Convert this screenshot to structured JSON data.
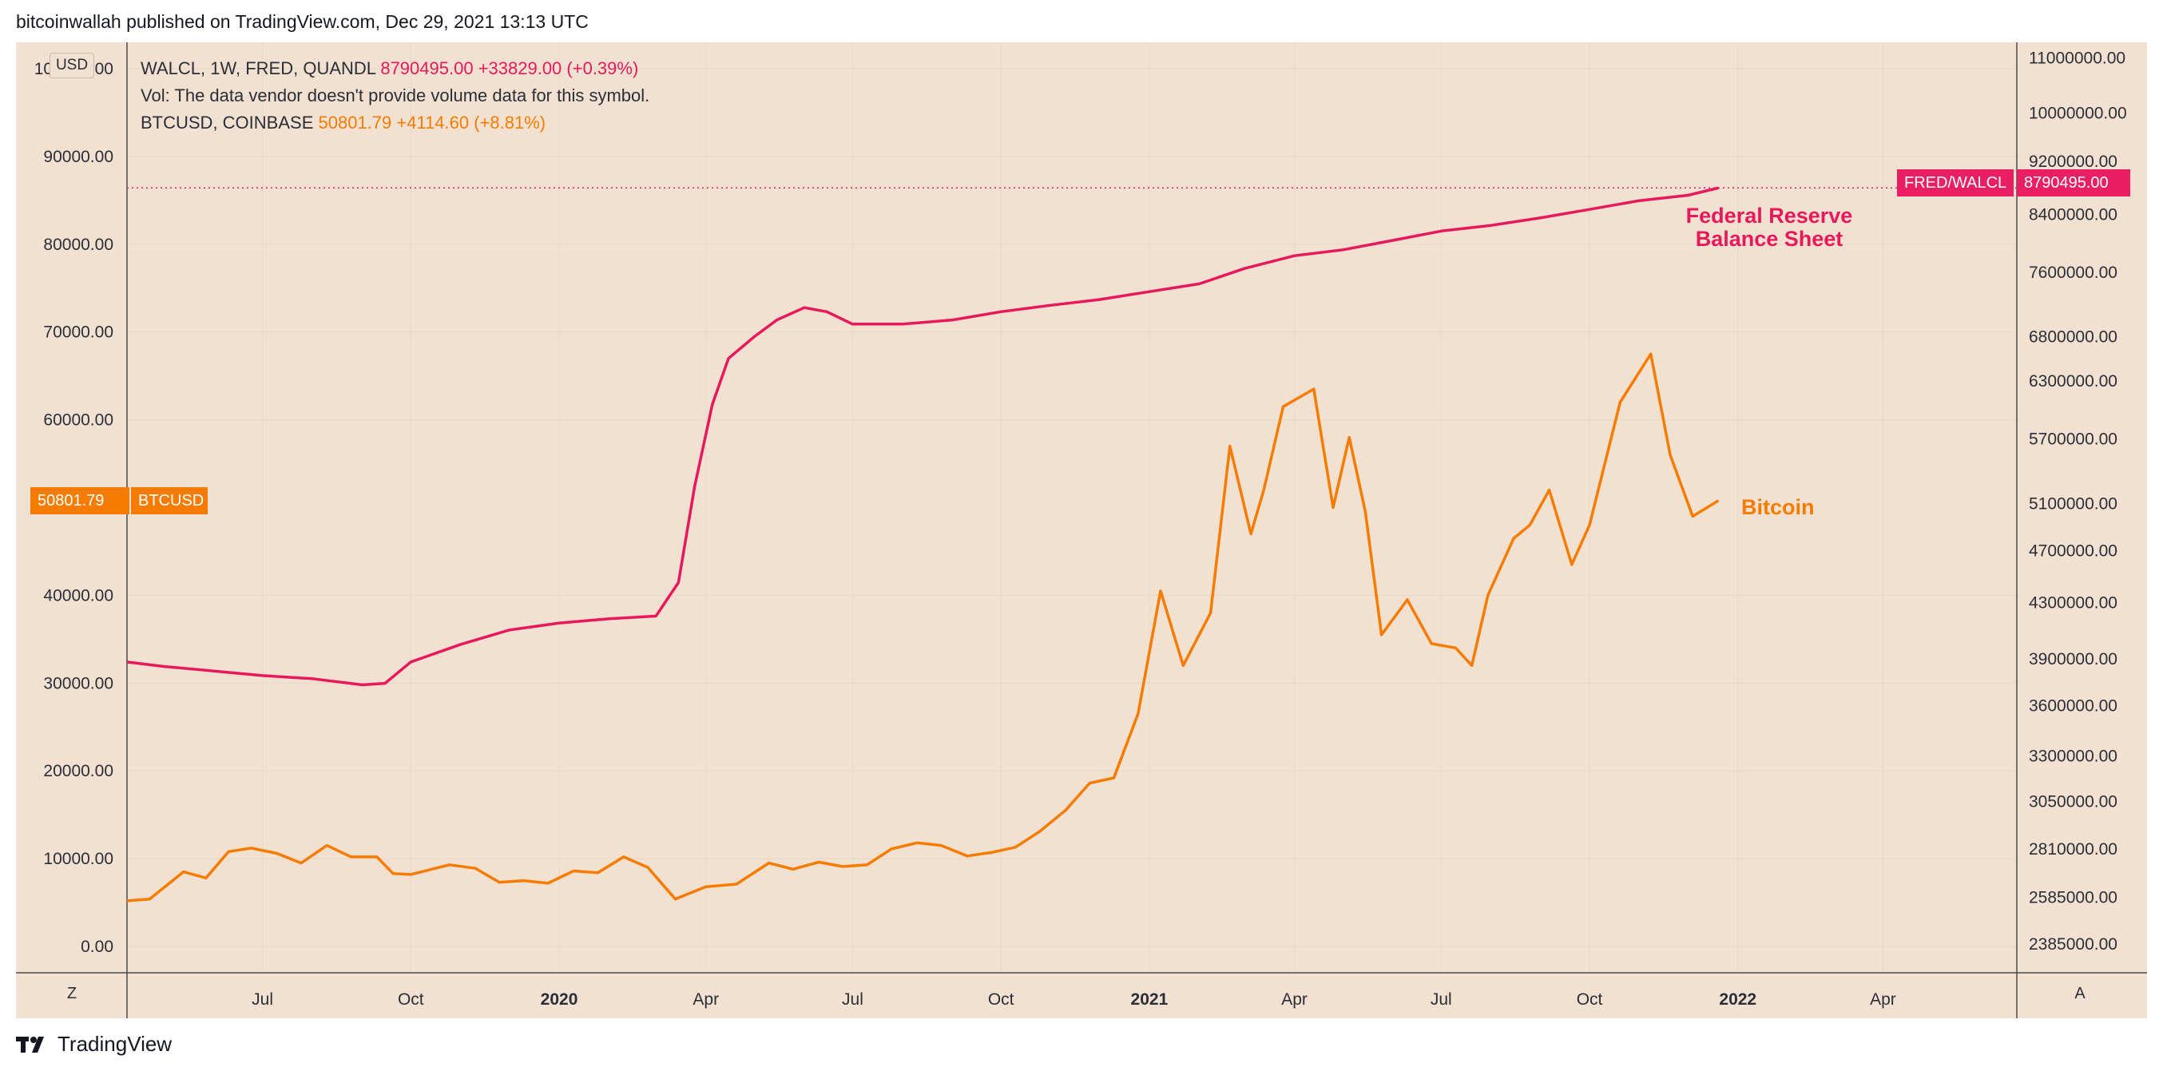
{
  "header": {
    "text": "bitcoinwallah published on TradingView.com, Dec 29, 2021 13:13 UTC"
  },
  "legend": {
    "walcl_symbol": "WALCL, 1W, FRED, QUANDL",
    "walcl_value": "8790495.00",
    "walcl_change": "+33829.00 (+0.39%)",
    "vol_text": "Vol: The data vendor doesn't provide volume data for this symbol.",
    "btc_symbol": "BTCUSD, COINBASE",
    "btc_value": "50801.79",
    "btc_change": "+4114.60 (+8.81%)"
  },
  "left_axis_unit": "USD",
  "price_tags": {
    "btc_value": "50801.79",
    "btc_label": "BTCUSD",
    "fred_label": "FRED/WALCL",
    "fred_value": "8790495.00"
  },
  "annotations": {
    "fed_line1": "Federal Reserve",
    "fed_line2": "Balance Sheet",
    "bitcoin": "Bitcoin"
  },
  "corner_buttons": {
    "left": "Z",
    "right": "A"
  },
  "footer": {
    "brand": "TradingView"
  },
  "colors": {
    "background": "#f2e1d0",
    "fed_line": "#e8185d",
    "btc_line": "#f57c00",
    "grid": "#e9d7c5"
  },
  "chart_data": {
    "type": "line",
    "x_tick_labels": [
      "Jul",
      "Oct",
      "2020",
      "Apr",
      "Jul",
      "Oct",
      "2021",
      "Apr",
      "Jul",
      "Oct",
      "2022",
      "Apr"
    ],
    "x_tick_dates": [
      "2019-07-01",
      "2019-10-01",
      "2020-01-01",
      "2020-04-01",
      "2020-07-01",
      "2020-10-01",
      "2021-01-01",
      "2021-04-01",
      "2021-07-01",
      "2021-10-01",
      "2022-01-01",
      "2022-04-01"
    ],
    "x_range": [
      "2019-04-08",
      "2022-06-23"
    ],
    "left_axis": {
      "range": [
        -3000,
        103000
      ],
      "ticks": [
        0,
        10000,
        20000,
        30000,
        40000,
        60000,
        70000,
        80000,
        90000,
        100000
      ],
      "tick_labels": [
        "0.00",
        "10000.00",
        "20000.00",
        "30000.00",
        "40000.00",
        "60000.00",
        "70000.00",
        "80000.00",
        "90000.00",
        "100000.00"
      ]
    },
    "right_axis": {
      "scale": "log",
      "range": [
        2270000,
        11300000
      ],
      "ticks": [
        2385000,
        2585000,
        2810000,
        3050000,
        3300000,
        3600000,
        3900000,
        4300000,
        4700000,
        5100000,
        5700000,
        6300000,
        6800000,
        7600000,
        8400000,
        9200000,
        10000000,
        11000000
      ],
      "tick_labels": [
        "2385000.00",
        "2585000.00",
        "2810000.00",
        "3050000.00",
        "3300000.00",
        "3600000.00",
        "3900000.00",
        "4300000.00",
        "4700000.00",
        "5100000.00",
        "5700000.00",
        "6300000.00",
        "6800000.00",
        "7600000.00",
        "8400000.00",
        "9200000.00",
        "10000000.00",
        "11000000.00"
      ]
    },
    "grid": true,
    "series": [
      {
        "axis": "right",
        "x": [
          "2019-04-08",
          "2019-05-01",
          "2019-06-01",
          "2019-07-01",
          "2019-08-01",
          "2019-09-01",
          "2019-09-15",
          "2019-10-01",
          "2019-11-01",
          "2019-12-01",
          "2020-01-01",
          "2020-02-01",
          "2020-03-01",
          "2020-03-15",
          "2020-03-25",
          "2020-04-05",
          "2020-04-15",
          "2020-05-01",
          "2020-05-15",
          "2020-06-01",
          "2020-06-15",
          "2020-07-01",
          "2020-08-01",
          "2020-09-01",
          "2020-10-01",
          "2020-11-01",
          "2020-12-01",
          "2021-01-01",
          "2021-02-01",
          "2021-03-01",
          "2021-04-01",
          "2021-05-01",
          "2021-06-01",
          "2021-07-01",
          "2021-08-01",
          "2021-09-01",
          "2021-10-01",
          "2021-11-01",
          "2021-12-01",
          "2021-12-20"
        ],
        "values": [
          3880000,
          3850000,
          3820000,
          3790000,
          3770000,
          3730000,
          3740000,
          3880000,
          4000000,
          4100000,
          4150000,
          4180000,
          4200000,
          4450000,
          5250000,
          6050000,
          6550000,
          6800000,
          7000000,
          7150000,
          7100000,
          6950000,
          6950000,
          7000000,
          7100000,
          7180000,
          7250000,
          7350000,
          7450000,
          7650000,
          7820000,
          7900000,
          8030000,
          8160000,
          8240000,
          8350000,
          8470000,
          8600000,
          8680000,
          8790495
        ]
      },
      {
        "axis": "left",
        "x": [
          "2019-04-08",
          "2019-04-22",
          "2019-05-13",
          "2019-05-27",
          "2019-06-10",
          "2019-06-24",
          "2019-07-10",
          "2019-07-25",
          "2019-08-10",
          "2019-08-25",
          "2019-09-10",
          "2019-09-20",
          "2019-10-01",
          "2019-10-25",
          "2019-11-10",
          "2019-11-25",
          "2019-12-10",
          "2019-12-25",
          "2020-01-10",
          "2020-01-25",
          "2020-02-10",
          "2020-02-25",
          "2020-03-13",
          "2020-04-01",
          "2020-04-20",
          "2020-05-10",
          "2020-05-25",
          "2020-06-10",
          "2020-06-25",
          "2020-07-10",
          "2020-07-25",
          "2020-08-10",
          "2020-08-25",
          "2020-09-10",
          "2020-09-25",
          "2020-10-10",
          "2020-10-25",
          "2020-11-10",
          "2020-11-25",
          "2020-12-10",
          "2020-12-25",
          "2021-01-08",
          "2021-01-22",
          "2021-02-08",
          "2021-02-20",
          "2021-03-05",
          "2021-03-13",
          "2021-03-25",
          "2021-04-13",
          "2021-04-25",
          "2021-05-05",
          "2021-05-15",
          "2021-05-25",
          "2021-06-10",
          "2021-06-25",
          "2021-07-10",
          "2021-07-20",
          "2021-07-30",
          "2021-08-15",
          "2021-08-25",
          "2021-09-06",
          "2021-09-20",
          "2021-10-01",
          "2021-10-20",
          "2021-11-08",
          "2021-11-20",
          "2021-12-04",
          "2021-12-20"
        ],
        "values": [
          5200,
          5400,
          8500,
          7800,
          10800,
          11200,
          10600,
          9500,
          11500,
          10200,
          10200,
          8300,
          8200,
          9300,
          8900,
          7300,
          7500,
          7200,
          8600,
          8400,
          10200,
          9000,
          5400,
          6800,
          7100,
          9500,
          8800,
          9600,
          9100,
          9300,
          11100,
          11800,
          11500,
          10300,
          10700,
          11300,
          13100,
          15500,
          18600,
          19200,
          26500,
          40500,
          32000,
          38000,
          57000,
          47000,
          52000,
          61500,
          63500,
          50000,
          58000,
          49500,
          35500,
          39500,
          34500,
          34000,
          32000,
          40000,
          46500,
          48000,
          52000,
          43500,
          48000,
          62000,
          67500,
          56000,
          49000,
          50801.79
        ]
      }
    ]
  }
}
